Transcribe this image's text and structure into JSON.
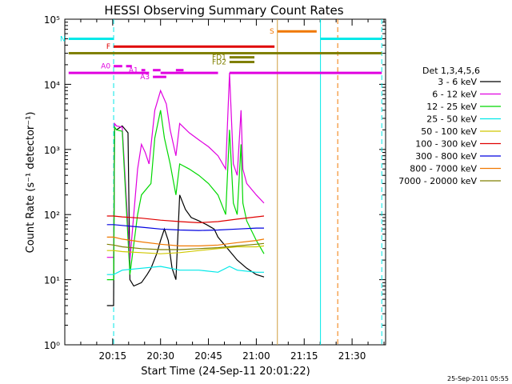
{
  "chart_data": {
    "type": "line",
    "title": "HESSI Observing Summary Count Rates",
    "xlabel": "Start Time (24-Sep-11 20:01:22)",
    "ylabel": "Count Rate (s⁻¹ detector⁻¹)",
    "yscale": "log",
    "ylim": [
      1,
      100000
    ],
    "xlim_minutes": [
      20.0,
      21.675
    ],
    "xticks": [
      "20:15",
      "20:30",
      "20:45",
      "21:00",
      "21:15",
      "21:30"
    ],
    "yticks": [
      "10⁰",
      "10¹",
      "10²",
      "10³",
      "10⁴",
      "10⁵"
    ],
    "timestamp": "25-Sep-2011 05:55",
    "legend": {
      "placement": "right",
      "title": "Det 1,3,4,5,6",
      "entries": [
        {
          "label": "3 - 6 keV",
          "color": "#000000"
        },
        {
          "label": "6 - 12 keV",
          "color": "#e000e0"
        },
        {
          "label": "12 - 25 keV",
          "color": "#00d800"
        },
        {
          "label": "25 - 50 keV",
          "color": "#00e8e8"
        },
        {
          "label": "50 - 100 keV",
          "color": "#d0c800"
        },
        {
          "label": "100 - 300 keV",
          "color": "#e00000"
        },
        {
          "label": "300 - 800 keV",
          "color": "#0000e0"
        },
        {
          "label": "800 - 7000 keV",
          "color": "#f07800"
        },
        {
          "label": "7000 - 20000 keV",
          "color": "#808000"
        }
      ]
    },
    "flags": [
      {
        "label": "N",
        "color": "#00e8e8",
        "segments": [
          [
            20.02,
            20.255
          ],
          [
            21.335,
            21.655
          ]
        ],
        "y": 50000
      },
      {
        "label": "S",
        "color": "#f07800",
        "segments": [
          [
            21.11,
            21.315
          ]
        ],
        "y": 65000
      },
      {
        "label": "F",
        "color": "#e00000",
        "segments": [
          [
            20.255,
            21.095
          ]
        ],
        "y": 38000
      },
      {
        "label": "",
        "color": "#808000",
        "segments": [
          [
            20.02,
            21.655
          ]
        ],
        "y": 30000
      },
      {
        "label": "FD1",
        "color": "#808000",
        "segments": [
          [
            20.86,
            20.99
          ]
        ],
        "y": 26000
      },
      {
        "label": "FD2",
        "color": "#808000",
        "segments": [
          [
            20.86,
            20.99
          ]
        ],
        "y": 22000
      },
      {
        "label": "A0",
        "color": "#e000e0",
        "segments": [
          [
            20.255,
            20.3
          ],
          [
            20.32,
            20.35
          ]
        ],
        "y": 19000
      },
      {
        "label": "A1",
        "color": "#e000e0",
        "segments": [
          [
            20.4,
            20.42
          ],
          [
            20.46,
            20.5
          ],
          [
            20.58,
            20.62
          ]
        ],
        "y": 16500
      },
      {
        "label": "",
        "color": "#e000e0",
        "segments": [
          [
            20.02,
            20.44
          ],
          [
            20.5,
            20.8
          ],
          [
            20.86,
            21.655
          ]
        ],
        "y": 15000
      },
      {
        "label": "A3",
        "color": "#e000e0",
        "segments": [
          [
            20.46,
            20.53
          ]
        ],
        "y": 13000
      }
    ],
    "vlines": [
      {
        "x": 20.255,
        "color": "#00e8e8",
        "style": "dashed"
      },
      {
        "x": 21.11,
        "color": "#d0a040",
        "style": "solid"
      },
      {
        "x": 21.335,
        "color": "#00e8e8",
        "style": "solid"
      },
      {
        "x": 21.425,
        "color": "#f07800",
        "style": "dashed"
      },
      {
        "x": 21.655,
        "color": "#00e8e8",
        "style": "dashed"
      }
    ],
    "series": [
      {
        "name": "3 - 6 keV",
        "color": "#000000",
        "points": [
          [
            20.22,
            4
          ],
          [
            20.255,
            4
          ],
          [
            20.26,
            2200
          ],
          [
            20.27,
            2000
          ],
          [
            20.3,
            2300
          ],
          [
            20.33,
            1800
          ],
          [
            20.34,
            10
          ],
          [
            20.36,
            8
          ],
          [
            20.4,
            9
          ],
          [
            20.43,
            12
          ],
          [
            20.45,
            15
          ],
          [
            20.48,
            25
          ],
          [
            20.5,
            40
          ],
          [
            20.52,
            60
          ],
          [
            20.54,
            40
          ],
          [
            20.56,
            15
          ],
          [
            20.58,
            10
          ],
          [
            20.6,
            200
          ],
          [
            20.63,
            120
          ],
          [
            20.66,
            90
          ],
          [
            20.7,
            80
          ],
          [
            20.74,
            70
          ],
          [
            20.78,
            60
          ],
          [
            20.8,
            45
          ],
          [
            20.85,
            30
          ],
          [
            20.9,
            20
          ],
          [
            20.95,
            15
          ],
          [
            21.0,
            12
          ],
          [
            21.04,
            11
          ]
        ]
      },
      {
        "name": "6 - 12 keV",
        "color": "#e000e0",
        "points": [
          [
            20.22,
            22
          ],
          [
            20.255,
            22
          ],
          [
            20.26,
            2500
          ],
          [
            20.27,
            2300
          ],
          [
            20.3,
            2200
          ],
          [
            20.34,
            20
          ],
          [
            20.38,
            500
          ],
          [
            20.4,
            1200
          ],
          [
            20.42,
            900
          ],
          [
            20.44,
            600
          ],
          [
            20.47,
            4000
          ],
          [
            20.5,
            8000
          ],
          [
            20.53,
            5000
          ],
          [
            20.55,
            2000
          ],
          [
            20.58,
            800
          ],
          [
            20.6,
            2500
          ],
          [
            20.65,
            1800
          ],
          [
            20.7,
            1400
          ],
          [
            20.75,
            1100
          ],
          [
            20.8,
            800
          ],
          [
            20.84,
            500
          ],
          [
            20.86,
            15000
          ],
          [
            20.88,
            600
          ],
          [
            20.9,
            400
          ],
          [
            20.92,
            4000
          ],
          [
            20.93,
            500
          ],
          [
            20.95,
            300
          ],
          [
            21.0,
            200
          ],
          [
            21.04,
            150
          ]
        ]
      },
      {
        "name": "12 - 25 keV",
        "color": "#00d800",
        "points": [
          [
            20.22,
            10
          ],
          [
            20.255,
            10
          ],
          [
            20.26,
            2200
          ],
          [
            20.27,
            2000
          ],
          [
            20.3,
            1900
          ],
          [
            20.34,
            12
          ],
          [
            20.38,
            100
          ],
          [
            20.4,
            200
          ],
          [
            20.45,
            300
          ],
          [
            20.47,
            1500
          ],
          [
            20.5,
            4000
          ],
          [
            20.52,
            1500
          ],
          [
            20.55,
            600
          ],
          [
            20.58,
            200
          ],
          [
            20.6,
            600
          ],
          [
            20.65,
            500
          ],
          [
            20.7,
            400
          ],
          [
            20.75,
            300
          ],
          [
            20.8,
            200
          ],
          [
            20.84,
            100
          ],
          [
            20.86,
            2000
          ],
          [
            20.88,
            150
          ],
          [
            20.9,
            100
          ],
          [
            20.92,
            1200
          ],
          [
            20.93,
            150
          ],
          [
            20.95,
            80
          ],
          [
            21.0,
            40
          ],
          [
            21.04,
            25
          ]
        ]
      },
      {
        "name": "25 - 50 keV",
        "color": "#00e8e8",
        "points": [
          [
            20.22,
            12
          ],
          [
            20.255,
            12
          ],
          [
            20.3,
            14
          ],
          [
            20.4,
            15
          ],
          [
            20.5,
            16
          ],
          [
            20.6,
            14
          ],
          [
            20.7,
            14
          ],
          [
            20.8,
            13
          ],
          [
            20.86,
            16
          ],
          [
            20.9,
            14
          ],
          [
            21.0,
            13
          ],
          [
            21.04,
            13
          ]
        ]
      },
      {
        "name": "50 - 100 keV",
        "color": "#d0c800",
        "points": [
          [
            20.22,
            28
          ],
          [
            20.255,
            28
          ],
          [
            20.3,
            27
          ],
          [
            20.4,
            26
          ],
          [
            20.5,
            25
          ],
          [
            20.6,
            26
          ],
          [
            20.7,
            28
          ],
          [
            20.8,
            30
          ],
          [
            20.9,
            32
          ],
          [
            21.0,
            32
          ],
          [
            21.04,
            33
          ]
        ]
      },
      {
        "name": "100 - 300 keV",
        "color": "#e00000",
        "points": [
          [
            20.22,
            95
          ],
          [
            20.255,
            95
          ],
          [
            20.3,
            92
          ],
          [
            20.4,
            88
          ],
          [
            20.5,
            82
          ],
          [
            20.6,
            78
          ],
          [
            20.7,
            75
          ],
          [
            20.8,
            78
          ],
          [
            20.9,
            85
          ],
          [
            21.0,
            92
          ],
          [
            21.04,
            95
          ]
        ]
      },
      {
        "name": "300 - 800 keV",
        "color": "#0000e0",
        "points": [
          [
            20.22,
            70
          ],
          [
            20.255,
            70
          ],
          [
            20.3,
            68
          ],
          [
            20.4,
            64
          ],
          [
            20.5,
            60
          ],
          [
            20.6,
            58
          ],
          [
            20.7,
            57
          ],
          [
            20.8,
            58
          ],
          [
            20.9,
            60
          ],
          [
            21.0,
            62
          ],
          [
            21.04,
            62
          ]
        ]
      },
      {
        "name": "800 - 7000 keV",
        "color": "#f07800",
        "points": [
          [
            20.22,
            45
          ],
          [
            20.255,
            45
          ],
          [
            20.3,
            42
          ],
          [
            20.4,
            38
          ],
          [
            20.5,
            35
          ],
          [
            20.6,
            33
          ],
          [
            20.7,
            33
          ],
          [
            20.8,
            34
          ],
          [
            20.9,
            37
          ],
          [
            21.0,
            40
          ],
          [
            21.04,
            42
          ]
        ]
      },
      {
        "name": "7000 - 20000 keV",
        "color": "#808000",
        "points": [
          [
            20.22,
            35
          ],
          [
            20.255,
            34
          ],
          [
            20.3,
            32
          ],
          [
            20.4,
            30
          ],
          [
            20.5,
            29
          ],
          [
            20.6,
            29
          ],
          [
            20.7,
            30
          ],
          [
            20.8,
            31
          ],
          [
            20.9,
            33
          ],
          [
            21.0,
            35
          ],
          [
            21.04,
            36
          ]
        ]
      }
    ]
  }
}
